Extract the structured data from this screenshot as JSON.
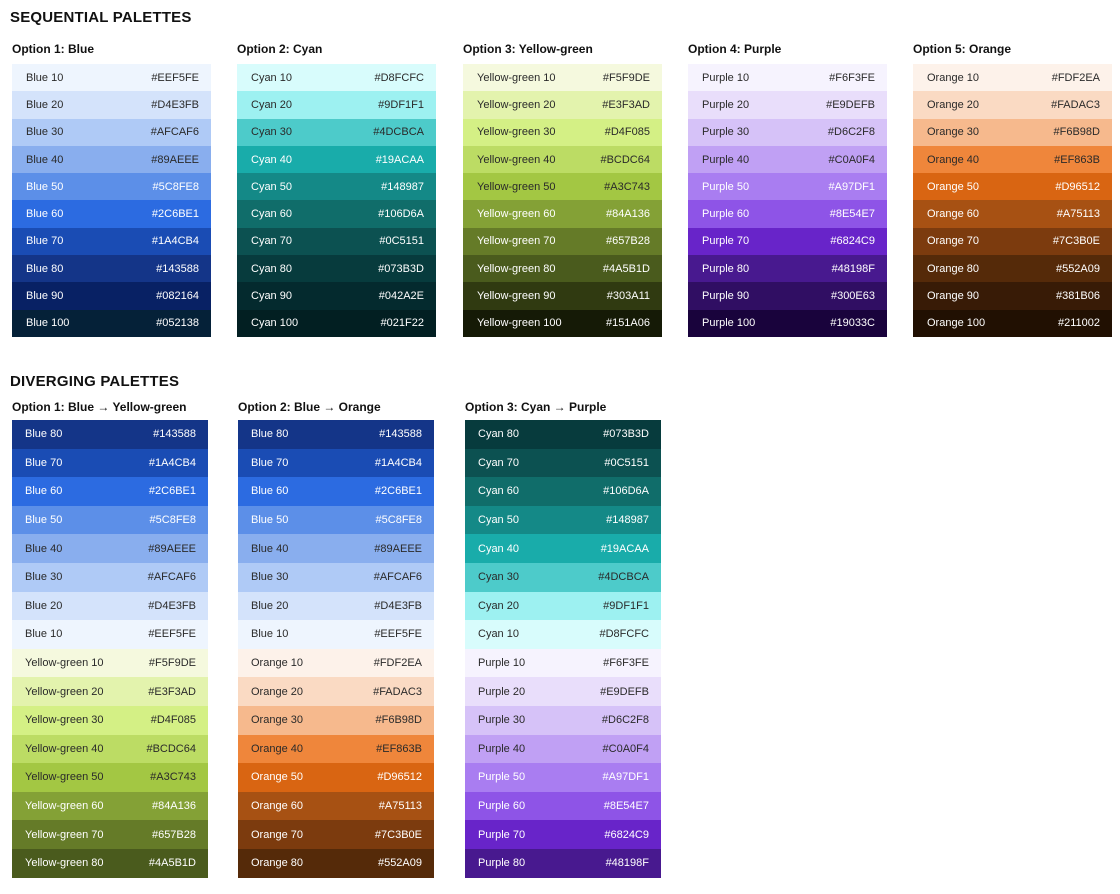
{
  "sequential": {
    "title": "SEQUENTIAL PALETTES",
    "palettes": [
      {
        "title": "Option 1: Blue",
        "swatches": [
          {
            "name": "Blue 10",
            "hex": "#EEF5FE"
          },
          {
            "name": "Blue 20",
            "hex": "#D4E3FB"
          },
          {
            "name": "Blue 30",
            "hex": "#AFCAF6"
          },
          {
            "name": "Blue 40",
            "hex": "#89AEEE"
          },
          {
            "name": "Blue 50",
            "hex": "#5C8FE8"
          },
          {
            "name": "Blue 60",
            "hex": "#2C6BE1"
          },
          {
            "name": "Blue 70",
            "hex": "#1A4CB4"
          },
          {
            "name": "Blue 80",
            "hex": "#143588"
          },
          {
            "name": "Blue 90",
            "hex": "#082164"
          },
          {
            "name": "Blue 100",
            "hex": "#052138"
          }
        ]
      },
      {
        "title": "Option 2: Cyan",
        "swatches": [
          {
            "name": "Cyan 10",
            "hex": "#D8FCFC"
          },
          {
            "name": "Cyan 20",
            "hex": "#9DF1F1"
          },
          {
            "name": "Cyan 30",
            "hex": "#4DCBCA"
          },
          {
            "name": "Cyan 40",
            "hex": "#19ACAA"
          },
          {
            "name": "Cyan 50",
            "hex": "#148987"
          },
          {
            "name": "Cyan 60",
            "hex": "#106D6A"
          },
          {
            "name": "Cyan 70",
            "hex": "#0C5151"
          },
          {
            "name": "Cyan 80",
            "hex": "#073B3D"
          },
          {
            "name": "Cyan 90",
            "hex": "#042A2E"
          },
          {
            "name": "Cyan 100",
            "hex": "#021F22"
          }
        ]
      },
      {
        "title": "Option 3: Yellow-green",
        "swatches": [
          {
            "name": "Yellow-green 10",
            "hex": "#F5F9DE"
          },
          {
            "name": "Yellow-green 20",
            "hex": "#E3F3AD"
          },
          {
            "name": "Yellow-green 30",
            "hex": "#D4F085"
          },
          {
            "name": "Yellow-green 40",
            "hex": "#BCDC64"
          },
          {
            "name": "Yellow-green 50",
            "hex": "#A3C743"
          },
          {
            "name": "Yellow-green 60",
            "hex": "#84A136"
          },
          {
            "name": "Yellow-green 70",
            "hex": "#657B28"
          },
          {
            "name": "Yellow-green 80",
            "hex": "#4A5B1D"
          },
          {
            "name": "Yellow-green 90",
            "hex": "#303A11"
          },
          {
            "name": "Yellow-green 100",
            "hex": "#151A06"
          }
        ]
      },
      {
        "title": "Option 4: Purple",
        "swatches": [
          {
            "name": "Purple 10",
            "hex": "#F6F3FE"
          },
          {
            "name": "Purple 20",
            "hex": "#E9DEFB"
          },
          {
            "name": "Purple 30",
            "hex": "#D6C2F8"
          },
          {
            "name": "Purple 40",
            "hex": "#C0A0F4"
          },
          {
            "name": "Purple 50",
            "hex": "#A97DF1"
          },
          {
            "name": "Purple 60",
            "hex": "#8E54E7"
          },
          {
            "name": "Purple 70",
            "hex": "#6824C9"
          },
          {
            "name": "Purple 80",
            "hex": "#48198F"
          },
          {
            "name": "Purple 90",
            "hex": "#300E63"
          },
          {
            "name": "Purple 100",
            "hex": "#19033C"
          }
        ]
      },
      {
        "title": "Option 5: Orange",
        "swatches": [
          {
            "name": "Orange 10",
            "hex": "#FDF2EA"
          },
          {
            "name": "Orange 20",
            "hex": "#FADAC3"
          },
          {
            "name": "Orange 30",
            "hex": "#F6B98D"
          },
          {
            "name": "Orange 40",
            "hex": "#EF863B"
          },
          {
            "name": "Orange 50",
            "hex": "#D96512"
          },
          {
            "name": "Orange 60",
            "hex": "#A75113"
          },
          {
            "name": "Orange 70",
            "hex": "#7C3B0E"
          },
          {
            "name": "Orange 80",
            "hex": "#552A09"
          },
          {
            "name": "Orange 90",
            "hex": "#381B06"
          },
          {
            "name": "Orange 100",
            "hex": "#211002"
          }
        ]
      }
    ]
  },
  "diverging": {
    "title": "DIVERGING PALETTES",
    "palettes": [
      {
        "title": "Option 1: Blue → Yellow-green",
        "swatches": [
          {
            "name": "Blue 80",
            "hex": "#143588"
          },
          {
            "name": "Blue 70",
            "hex": "#1A4CB4"
          },
          {
            "name": "Blue 60",
            "hex": "#2C6BE1"
          },
          {
            "name": "Blue 50",
            "hex": "#5C8FE8"
          },
          {
            "name": "Blue 40",
            "hex": "#89AEEE"
          },
          {
            "name": "Blue 30",
            "hex": "#AFCAF6"
          },
          {
            "name": "Blue 20",
            "hex": "#D4E3FB"
          },
          {
            "name": "Blue 10",
            "hex": "#EEF5FE"
          },
          {
            "name": "Yellow-green 10",
            "hex": "#F5F9DE"
          },
          {
            "name": "Yellow-green 20",
            "hex": "#E3F3AD"
          },
          {
            "name": "Yellow-green 30",
            "hex": "#D4F085"
          },
          {
            "name": "Yellow-green 40",
            "hex": "#BCDC64"
          },
          {
            "name": "Yellow-green 50",
            "hex": "#A3C743"
          },
          {
            "name": "Yellow-green 60",
            "hex": "#84A136"
          },
          {
            "name": "Yellow-green 70",
            "hex": "#657B28"
          },
          {
            "name": "Yellow-green 80",
            "hex": "#4A5B1D"
          }
        ]
      },
      {
        "title": "Option 2: Blue → Orange",
        "swatches": [
          {
            "name": "Blue 80",
            "hex": "#143588"
          },
          {
            "name": "Blue 70",
            "hex": "#1A4CB4"
          },
          {
            "name": "Blue 60",
            "hex": "#2C6BE1"
          },
          {
            "name": "Blue 50",
            "hex": "#5C8FE8"
          },
          {
            "name": "Blue 40",
            "hex": "#89AEEE"
          },
          {
            "name": "Blue 30",
            "hex": "#AFCAF6"
          },
          {
            "name": "Blue 20",
            "hex": "#D4E3FB"
          },
          {
            "name": "Blue 10",
            "hex": "#EEF5FE"
          },
          {
            "name": "Orange 10",
            "hex": "#FDF2EA"
          },
          {
            "name": "Orange 20",
            "hex": "#FADAC3"
          },
          {
            "name": "Orange 30",
            "hex": "#F6B98D"
          },
          {
            "name": "Orange 40",
            "hex": "#EF863B"
          },
          {
            "name": "Orange 50",
            "hex": "#D96512"
          },
          {
            "name": "Orange 60",
            "hex": "#A75113"
          },
          {
            "name": "Orange 70",
            "hex": "#7C3B0E"
          },
          {
            "name": "Orange 80",
            "hex": "#552A09"
          }
        ]
      },
      {
        "title": "Option 3: Cyan → Purple",
        "swatches": [
          {
            "name": "Cyan 80",
            "hex": "#073B3D"
          },
          {
            "name": "Cyan 70",
            "hex": "#0C5151"
          },
          {
            "name": "Cyan 60",
            "hex": "#106D6A"
          },
          {
            "name": "Cyan 50",
            "hex": "#148987"
          },
          {
            "name": "Cyan 40",
            "hex": "#19ACAA"
          },
          {
            "name": "Cyan 30",
            "hex": "#4DCBCA"
          },
          {
            "name": "Cyan 20",
            "hex": "#9DF1F1"
          },
          {
            "name": "Cyan 10",
            "hex": "#D8FCFC"
          },
          {
            "name": "Purple 10",
            "hex": "#F6F3FE"
          },
          {
            "name": "Purple 20",
            "hex": "#E9DEFB"
          },
          {
            "name": "Purple 30",
            "hex": "#D6C2F8"
          },
          {
            "name": "Purple 40",
            "hex": "#C0A0F4"
          },
          {
            "name": "Purple 50",
            "hex": "#A97DF1"
          },
          {
            "name": "Purple 60",
            "hex": "#8E54E7"
          },
          {
            "name": "Purple 70",
            "hex": "#6824C9"
          },
          {
            "name": "Purple 80",
            "hex": "#48198F"
          }
        ]
      }
    ]
  }
}
